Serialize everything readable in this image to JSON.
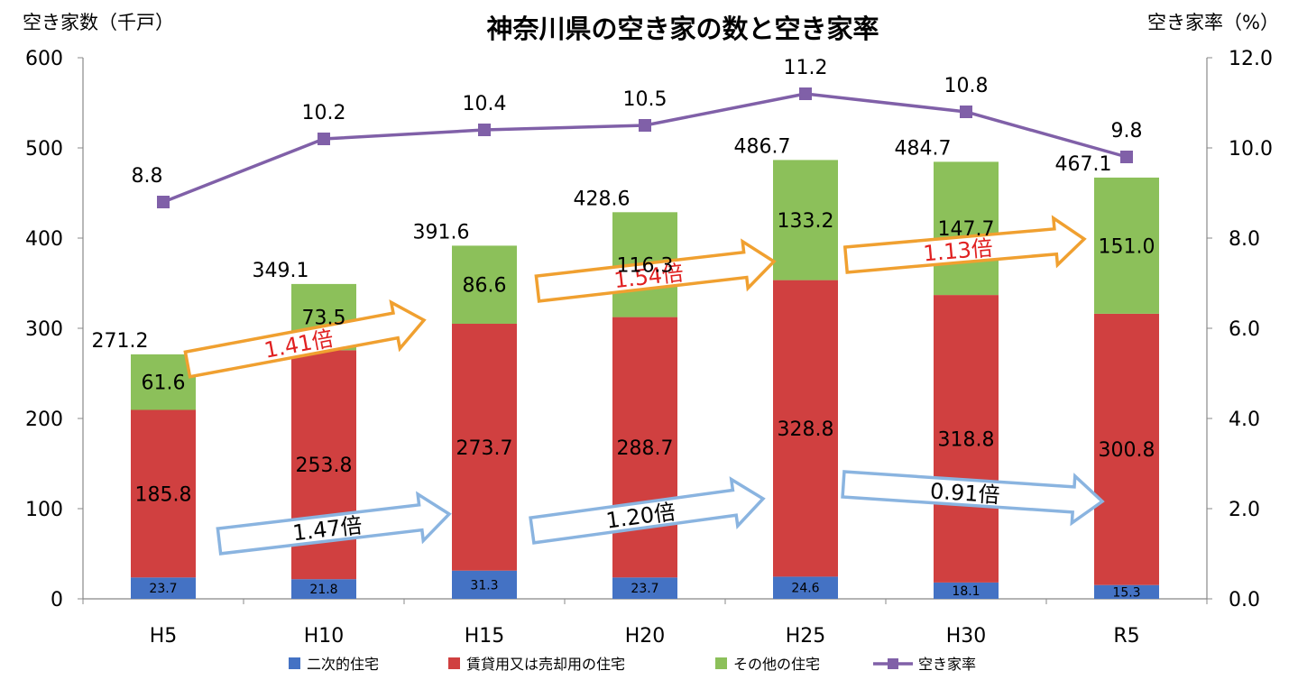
{
  "chart_data": {
    "type": "bar",
    "title": "神奈川県の空き家の数と空き家率",
    "ylabel_left": "空き家数（千戸）",
    "ylabel_right": "空き家率（%）",
    "categories": [
      "H5",
      "H10",
      "H15",
      "H20",
      "H25",
      "H30",
      "R5"
    ],
    "ylim_left": [
      0,
      600
    ],
    "ylim_right": [
      0,
      12
    ],
    "yticks_left": [
      "0",
      "100",
      "200",
      "300",
      "400",
      "500",
      "600"
    ],
    "yticks_right": [
      "0.0",
      "2.0",
      "4.0",
      "6.0",
      "8.0",
      "10.0",
      "12.0"
    ],
    "stack_series": [
      {
        "name": "二次的住宅",
        "color": "#4472c4",
        "values": [
          23.7,
          21.8,
          31.3,
          23.7,
          24.6,
          18.1,
          15.3
        ],
        "labels": [
          "23.7",
          "21.8",
          "31.3",
          "23.7",
          "24.6",
          "18.1",
          "15.3"
        ]
      },
      {
        "name": "賃貸用又は売却用の住宅",
        "color": "#d04040",
        "values": [
          185.8,
          253.8,
          273.7,
          288.7,
          328.8,
          318.8,
          300.8
        ],
        "labels": [
          "185.8",
          "253.8",
          "273.7",
          "288.7",
          "328.8",
          "318.8",
          "300.8"
        ]
      },
      {
        "name": "その他の住宅",
        "color": "#8cc05a",
        "values": [
          61.6,
          73.5,
          86.6,
          116.3,
          133.2,
          147.7,
          151.0
        ],
        "labels": [
          "61.6",
          "73.5",
          "86.6",
          "116.3",
          "133.2",
          "147.7",
          "151.0"
        ]
      }
    ],
    "totals": [
      271.2,
      349.1,
      391.6,
      428.6,
      486.7,
      484.7,
      467.1
    ],
    "total_labels": [
      "271.2",
      "349.1",
      "391.6",
      "428.6",
      "486.7",
      "484.7",
      "467.1"
    ],
    "line_series": {
      "name": "空き家率",
      "color": "#8060a8",
      "values": [
        8.8,
        10.2,
        10.4,
        10.5,
        11.2,
        10.8,
        9.8
      ],
      "labels": [
        "8.8",
        "10.2",
        "10.4",
        "10.5",
        "11.2",
        "10.8",
        "9.8"
      ]
    },
    "annotations": [
      {
        "text": "1.41倍",
        "series": "その他の住宅",
        "from": "H5",
        "to": "H15",
        "style": "orange"
      },
      {
        "text": "1.54倍",
        "series": "その他の住宅",
        "from": "H15",
        "to": "H25",
        "style": "orange"
      },
      {
        "text": "1.13倍",
        "series": "その他の住宅",
        "from": "H25",
        "to": "R5",
        "style": "orange"
      },
      {
        "text": "1.47倍",
        "series": "賃貸用又は売却用の住宅",
        "from": "H5",
        "to": "H15",
        "style": "blue"
      },
      {
        "text": "1.20倍",
        "series": "賃貸用又は売却用の住宅",
        "from": "H15",
        "to": "H25",
        "style": "blue"
      },
      {
        "text": "0.91倍",
        "series": "賃貸用又は売却用の住宅",
        "from": "H25",
        "to": "R5",
        "style": "blue"
      }
    ],
    "legend_position": "bottom",
    "grid": false
  }
}
